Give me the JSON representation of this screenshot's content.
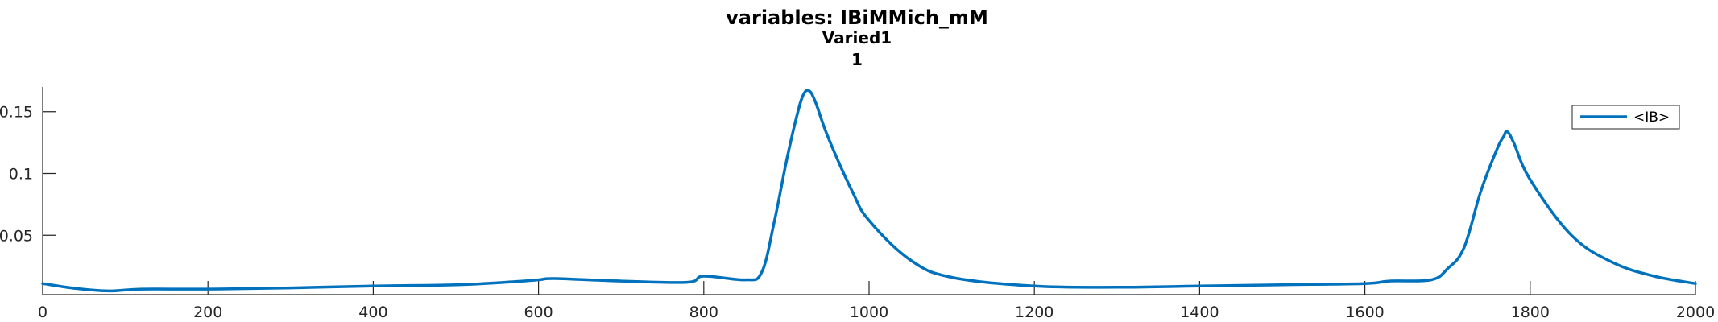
{
  "chart_data": {
    "type": "line",
    "title_lines": [
      "variables: IBiMMich_mM",
      "Varied1",
      "1"
    ],
    "xlabel": "",
    "ylabel": "",
    "xlim": [
      0,
      2000
    ],
    "ylim": [
      0.002,
      0.17
    ],
    "x_ticks": [
      0,
      200,
      400,
      600,
      800,
      1000,
      1200,
      1400,
      1600,
      1800,
      2000
    ],
    "x_tick_labels": [
      "0",
      "200",
      "400",
      "600",
      "800",
      "1000",
      "1200",
      "1400",
      "1600",
      "1800",
      "2000"
    ],
    "y_ticks": [
      0.05,
      0.1,
      0.15
    ],
    "y_tick_labels": [
      "0.05",
      "0.1",
      "0.15"
    ],
    "grid": false,
    "legend_position": "top-right",
    "colors": {
      "series": "#0072BD",
      "axis": "#262626"
    },
    "series": [
      {
        "name": "<IB>",
        "x": [
          0,
          40,
          80,
          120,
          200,
          300,
          400,
          500,
          560,
          600,
          620,
          700,
          780,
          800,
          850,
          870,
          885,
          900,
          912,
          920,
          927,
          935,
          950,
          980,
          1000,
          1050,
          1100,
          1200,
          1300,
          1400,
          1500,
          1600,
          1630,
          1680,
          1700,
          1720,
          1740,
          1760,
          1768,
          1772,
          1780,
          1800,
          1850,
          1900,
          1950,
          2000
        ],
        "y": [
          0.011,
          0.007,
          0.005,
          0.0065,
          0.0065,
          0.0075,
          0.009,
          0.01,
          0.012,
          0.014,
          0.015,
          0.013,
          0.012,
          0.017,
          0.014,
          0.02,
          0.06,
          0.11,
          0.145,
          0.163,
          0.167,
          0.158,
          0.13,
          0.085,
          0.062,
          0.03,
          0.016,
          0.009,
          0.008,
          0.009,
          0.01,
          0.011,
          0.013,
          0.014,
          0.023,
          0.04,
          0.085,
          0.12,
          0.13,
          0.134,
          0.125,
          0.095,
          0.05,
          0.028,
          0.017,
          0.011
        ]
      }
    ]
  }
}
